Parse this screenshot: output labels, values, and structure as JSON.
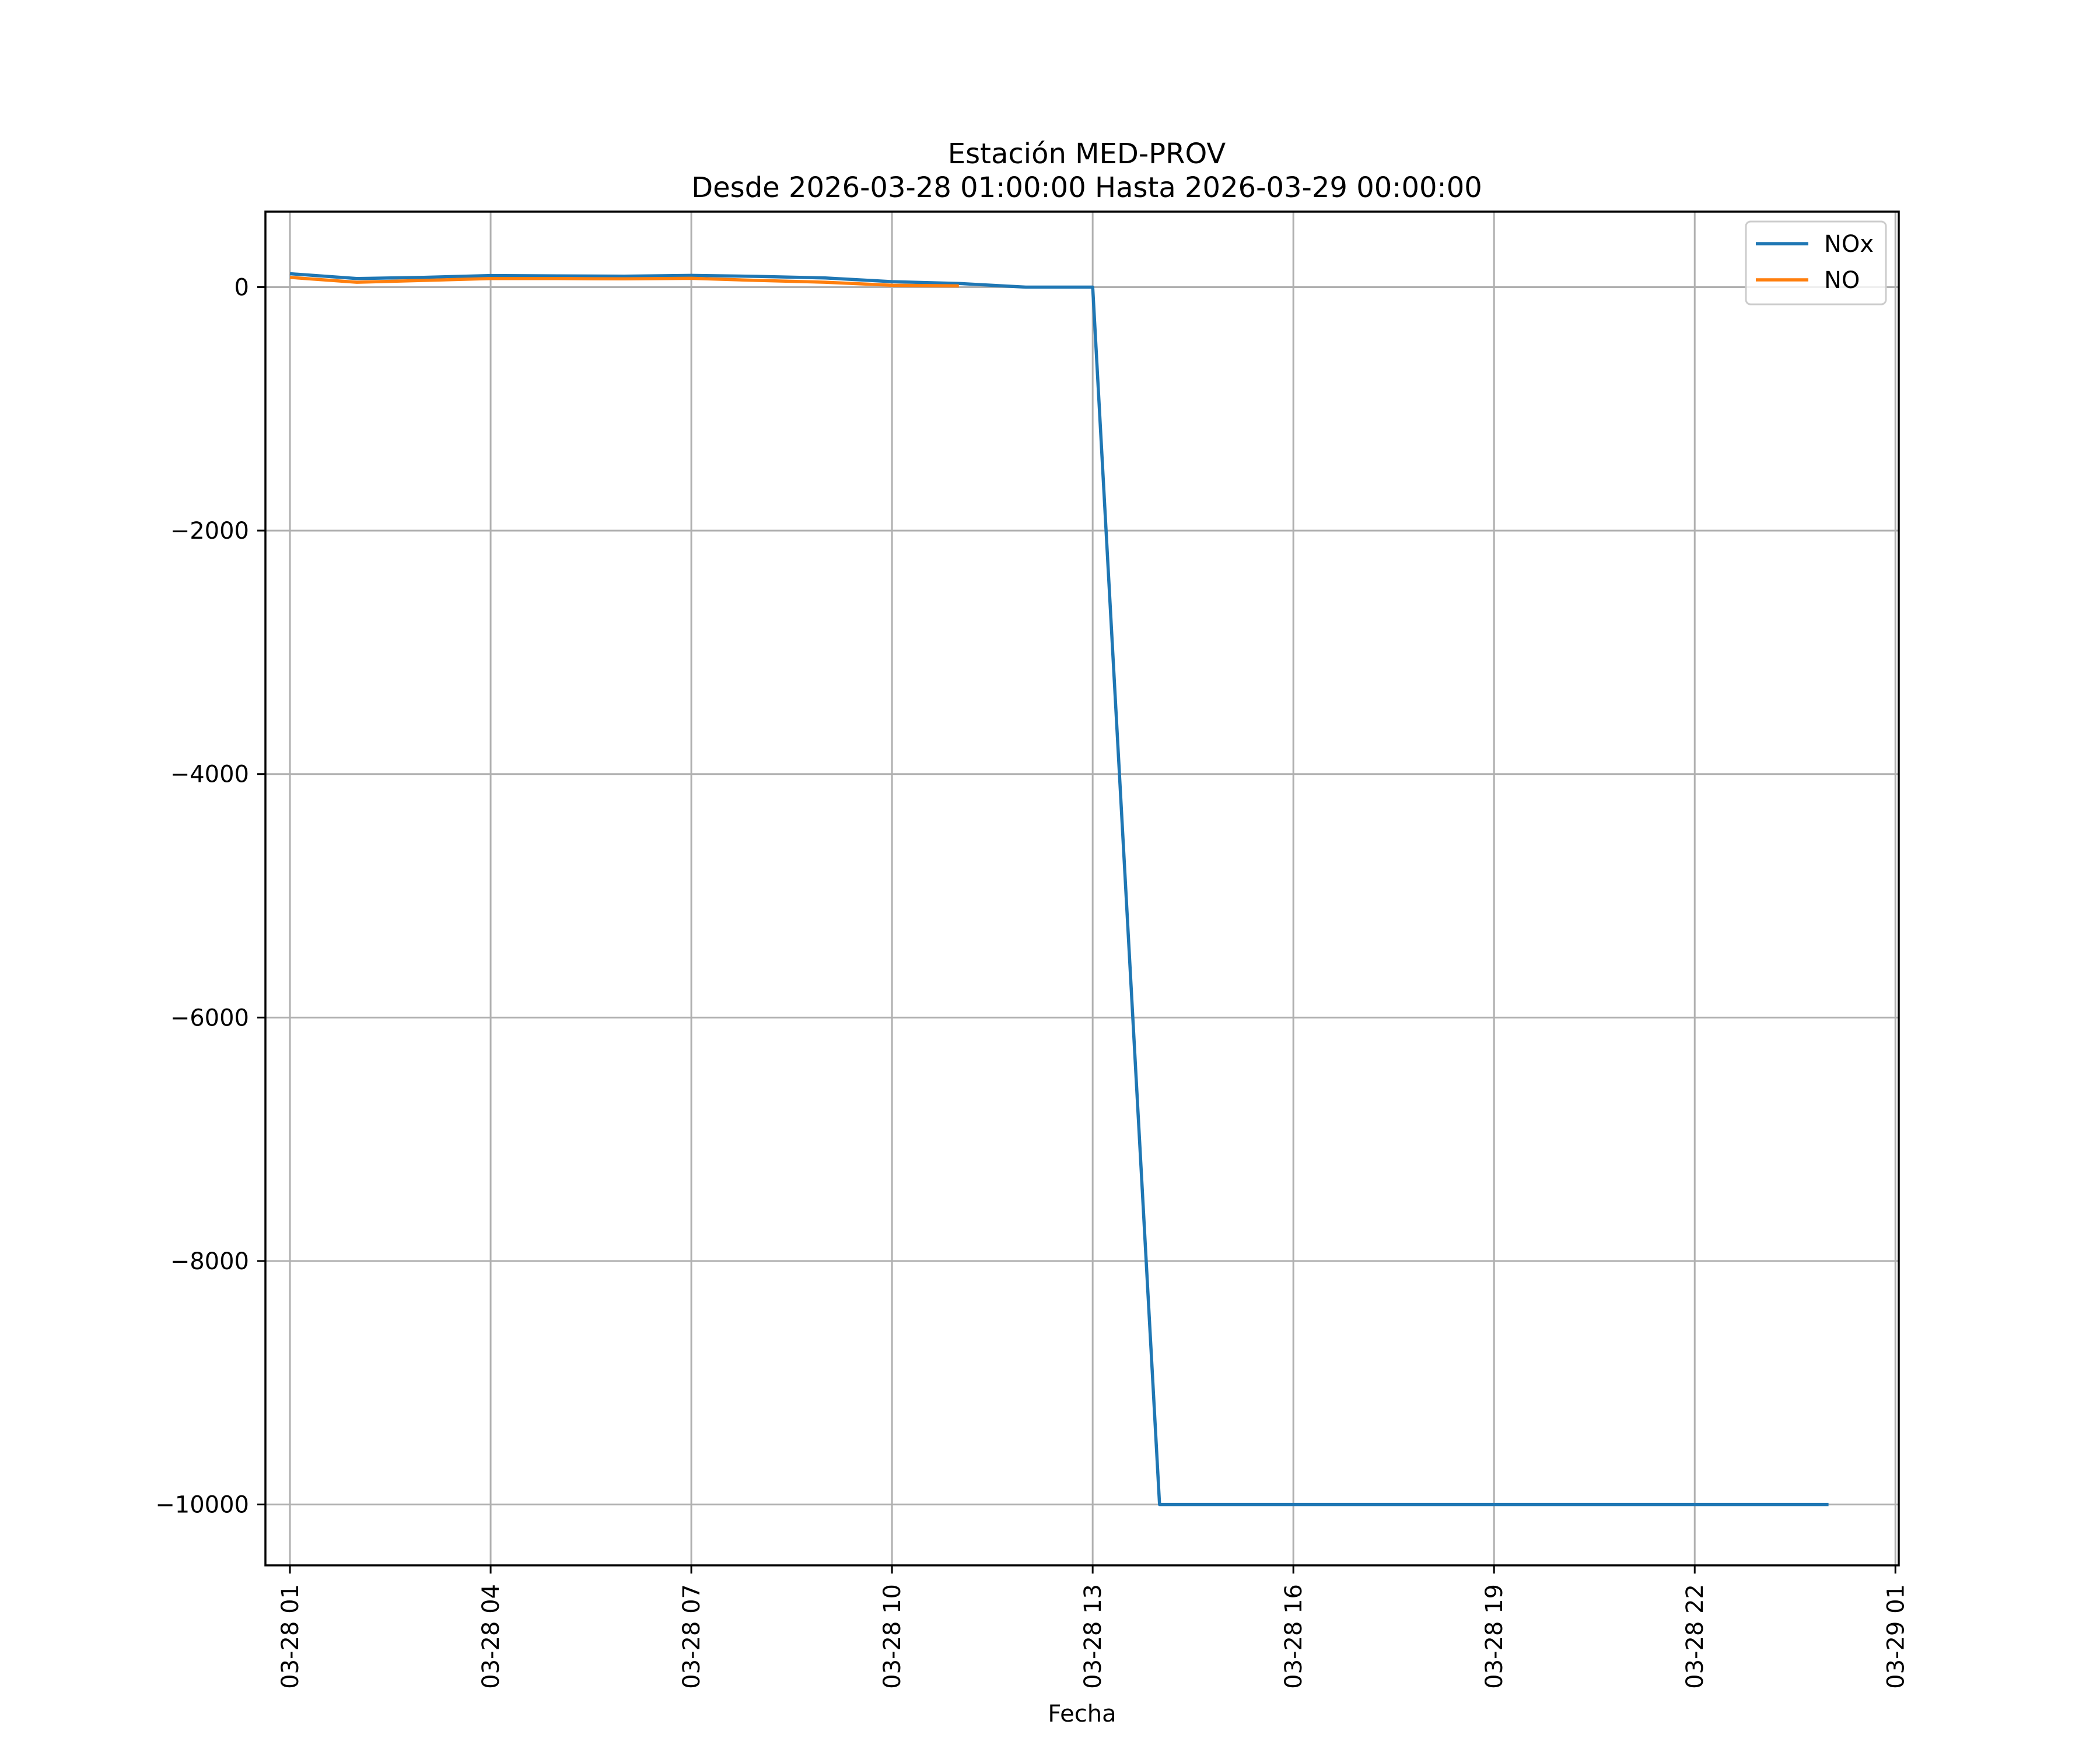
{
  "chart_data": {
    "type": "line",
    "title": "Estación MED-PROV",
    "subtitle": "Desde 2026-03-28 01:00:00 Hasta 2026-03-29 00:00:00",
    "xlabel": "Fecha",
    "ylabel": "",
    "x_unit": "hours",
    "xlim": [
      "2026-03-28 00:38",
      "2026-03-29 01:03"
    ],
    "ylim": [
      -10500,
      620
    ],
    "x_ticks": [
      {
        "x": "2026-03-28 01:00",
        "label": "03-28 01"
      },
      {
        "x": "2026-03-28 04:00",
        "label": "03-28 04"
      },
      {
        "x": "2026-03-28 07:00",
        "label": "03-28 07"
      },
      {
        "x": "2026-03-28 10:00",
        "label": "03-28 10"
      },
      {
        "x": "2026-03-28 13:00",
        "label": "03-28 13"
      },
      {
        "x": "2026-03-28 16:00",
        "label": "03-28 16"
      },
      {
        "x": "2026-03-28 19:00",
        "label": "03-28 19"
      },
      {
        "x": "2026-03-28 22:00",
        "label": "03-28 22"
      },
      {
        "x": "2026-03-29 01:00",
        "label": "03-29 01"
      }
    ],
    "y_ticks": [
      {
        "y": 0,
        "label": "0"
      },
      {
        "y": -2000,
        "label": "−2000"
      },
      {
        "y": -4000,
        "label": "−4000"
      },
      {
        "y": -6000,
        "label": "−6000"
      },
      {
        "y": -8000,
        "label": "−8000"
      },
      {
        "y": -10000,
        "label": "−10000"
      }
    ],
    "grid": true,
    "legend_position": "top-right",
    "series": [
      {
        "name": "NOx",
        "color": "#1f77b4",
        "points": [
          {
            "x": "2026-03-28 01:00",
            "y": 110
          },
          {
            "x": "2026-03-28 02:00",
            "y": 70
          },
          {
            "x": "2026-03-28 03:00",
            "y": 80
          },
          {
            "x": "2026-03-28 04:00",
            "y": 95
          },
          {
            "x": "2026-03-28 05:00",
            "y": 92
          },
          {
            "x": "2026-03-28 06:00",
            "y": 90
          },
          {
            "x": "2026-03-28 07:00",
            "y": 96
          },
          {
            "x": "2026-03-28 08:00",
            "y": 88
          },
          {
            "x": "2026-03-28 09:00",
            "y": 75
          },
          {
            "x": "2026-03-28 10:00",
            "y": 45
          },
          {
            "x": "2026-03-28 11:00",
            "y": 30
          },
          {
            "x": "2026-03-28 12:00",
            "y": 0
          },
          {
            "x": "2026-03-28 13:00",
            "y": 0
          },
          {
            "x": "2026-03-28 14:00",
            "y": -10000
          },
          {
            "x": "2026-03-28 15:00",
            "y": -10000
          },
          {
            "x": "2026-03-28 16:00",
            "y": -10000
          },
          {
            "x": "2026-03-28 17:00",
            "y": -10000
          },
          {
            "x": "2026-03-28 18:00",
            "y": -10000
          },
          {
            "x": "2026-03-28 19:00",
            "y": -10000
          },
          {
            "x": "2026-03-28 20:00",
            "y": -10000
          },
          {
            "x": "2026-03-28 21:00",
            "y": -10000
          },
          {
            "x": "2026-03-28 22:00",
            "y": -10000
          },
          {
            "x": "2026-03-28 23:00",
            "y": -10000
          },
          {
            "x": "2026-03-29 00:00",
            "y": -10000
          }
        ]
      },
      {
        "name": "NO",
        "color": "#ff7f0e",
        "points": [
          {
            "x": "2026-03-28 01:00",
            "y": 80
          },
          {
            "x": "2026-03-28 02:00",
            "y": 40
          },
          {
            "x": "2026-03-28 03:00",
            "y": 55
          },
          {
            "x": "2026-03-28 04:00",
            "y": 70
          },
          {
            "x": "2026-03-28 05:00",
            "y": 70
          },
          {
            "x": "2026-03-28 06:00",
            "y": 68
          },
          {
            "x": "2026-03-28 07:00",
            "y": 72
          },
          {
            "x": "2026-03-28 08:00",
            "y": 55
          },
          {
            "x": "2026-03-28 09:00",
            "y": 40
          },
          {
            "x": "2026-03-28 10:00",
            "y": 15
          },
          {
            "x": "2026-03-28 11:00",
            "y": 10
          }
        ]
      }
    ]
  }
}
